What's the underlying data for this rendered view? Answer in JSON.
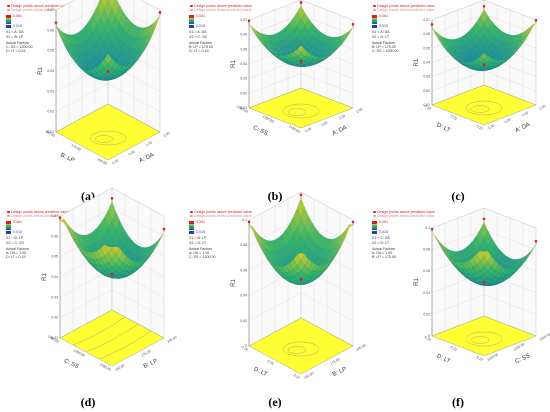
{
  "legend": {
    "design_points_above": "Design points above predicted value",
    "design_points_below": "Design points below predicted value",
    "high": "0.061",
    "low": "0.015",
    "actual_factors": "Actual Factors"
  },
  "colors": {
    "surface_low": "#2a3f9e",
    "surface_mid1": "#1b8f9a",
    "surface_mid2": "#34b36a",
    "surface_high": "#d6cf2a",
    "floor": "#ffff33",
    "design_point": "#e31a1c"
  },
  "chart_data": [
    {
      "type": "surface",
      "caption": "(a)",
      "zlabel": "R1",
      "xlabel": "A: DA",
      "ylabel": "B: LP",
      "zticks": [
        "0.07",
        "0.06",
        "0.05",
        "0.04",
        "0.03",
        "0.02",
        "0.01"
      ],
      "xticks": [
        "-1.00",
        "0.00",
        "1.00",
        "2.00"
      ],
      "yticks": [
        "200.00",
        "175.00",
        "150.00"
      ],
      "factor_lines": [
        "X1 = A: DA",
        "X2 = B: LP"
      ],
      "actual_lines": [
        "C: SS = 1200.00",
        "D: LT = 0.15"
      ]
    },
    {
      "type": "surface",
      "caption": "(b)",
      "zlabel": "R1",
      "xlabel": "A: DA",
      "ylabel": "C: SS",
      "zticks": [
        "0.07",
        "0.06",
        "0.05",
        "0.04",
        "0.03",
        "0.02",
        "0.01"
      ],
      "xticks": [
        "-1.00",
        "0.00",
        "1.00",
        "2.00"
      ],
      "yticks": [
        "1300.00",
        "1200.00",
        "1100.00"
      ],
      "factor_lines": [
        "X1 = A: DA",
        "X2 = C: SS"
      ],
      "actual_lines": [
        "B: LP = 175.00",
        "D: LT = 0.15"
      ]
    },
    {
      "type": "surface",
      "caption": "(c)",
      "zlabel": "R1",
      "xlabel": "A: DA",
      "ylabel": "D: LT",
      "zticks": [
        "0.07",
        "0.06",
        "0.05",
        "0.04",
        "0.03",
        "0.02",
        "0.01"
      ],
      "xticks": [
        "-1.00",
        "0.00",
        "1.00",
        "2.00"
      ],
      "yticks": [
        "0.18",
        "0.15",
        "0.12"
      ],
      "factor_lines": [
        "X1 = A: DA",
        "X2 = D: LT"
      ],
      "actual_lines": [
        "B: LP = 175.00",
        "C: SS = 1200.00"
      ]
    },
    {
      "type": "surface",
      "caption": "(d)",
      "zlabel": "R1",
      "xlabel": "B: LP",
      "ylabel": "C: SS",
      "zticks": [
        "0.07",
        "0.06",
        "0.05",
        "0.04",
        "0.03",
        "0.02",
        "0.01"
      ],
      "xticks": [
        "150.00",
        "175.00",
        "200.00"
      ],
      "yticks": [
        "1300.00",
        "1200.00",
        "1100.00"
      ],
      "factor_lines": [
        "X1 = B: LP",
        "X2 = C: SS"
      ],
      "actual_lines": [
        "A: DA = 1.00",
        "D: LT = 0.15"
      ]
    },
    {
      "type": "surface",
      "caption": "(e)",
      "zlabel": "R1",
      "xlabel": "B: LP",
      "ylabel": "D: LT",
      "zticks": [
        "0.1",
        "0.08",
        "0.06",
        "0.04",
        "0.02",
        "0"
      ],
      "xticks": [
        "150.00",
        "175.00",
        "200.00"
      ],
      "yticks": [
        "0.18",
        "0.15",
        "0.12"
      ],
      "factor_lines": [
        "X1 = B: LP",
        "X2 = D: LT"
      ],
      "actual_lines": [
        "A: DA = 1.00",
        "C: SS = 1200.00"
      ]
    },
    {
      "type": "surface",
      "caption": "(f)",
      "zlabel": "R1",
      "xlabel": "C: SS",
      "ylabel": "D: LT",
      "zticks": [
        "0.1",
        "0.08",
        "0.06",
        "0.04",
        "0.02",
        "0"
      ],
      "xticks": [
        "1100.00",
        "1200.00",
        "1300.00"
      ],
      "yticks": [
        "0.18",
        "0.15",
        "0.12"
      ],
      "factor_lines": [
        "X1 = C: SS",
        "X2 = D: LT"
      ],
      "actual_lines": [
        "A: DA = 1.00",
        "B: LP = 175.00"
      ]
    }
  ]
}
